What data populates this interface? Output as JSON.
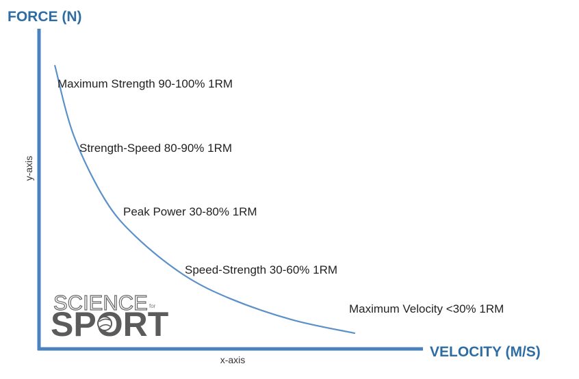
{
  "chart_data": {
    "type": "line",
    "title": "",
    "ylabel": "FORCE (N)",
    "xlabel": "VELOCITY (M/S)",
    "y_axis_note": "y-axis",
    "x_axis_note": "x-axis",
    "grid": false,
    "legend": "none",
    "ticks": "none",
    "series": [
      {
        "values_description": "hyperbolic force-velocity curve",
        "x": [
          0.04,
          0.1,
          0.2,
          0.3,
          0.45,
          0.6,
          0.8,
          1.0
        ],
        "y": [
          1.0,
          0.74,
          0.5,
          0.36,
          0.22,
          0.13,
          0.05,
          0.0
        ]
      }
    ],
    "annotations": [
      {
        "text": "Maximum Strength 90-100% 1RM"
      },
      {
        "text": "Strength-Speed 80-90% 1RM"
      },
      {
        "text": "Peak Power 30-80% 1RM"
      },
      {
        "text": "Speed-Strength 30-60% 1RM"
      },
      {
        "text": "Maximum Velocity <30% 1RM"
      }
    ]
  },
  "colors": {
    "axis": "#4a82be",
    "axis_title": "#2e6da4",
    "curve": "#5b90c8"
  },
  "logo": {
    "top": "SCIENCE",
    "small": "for",
    "bottom": "SPORT"
  }
}
